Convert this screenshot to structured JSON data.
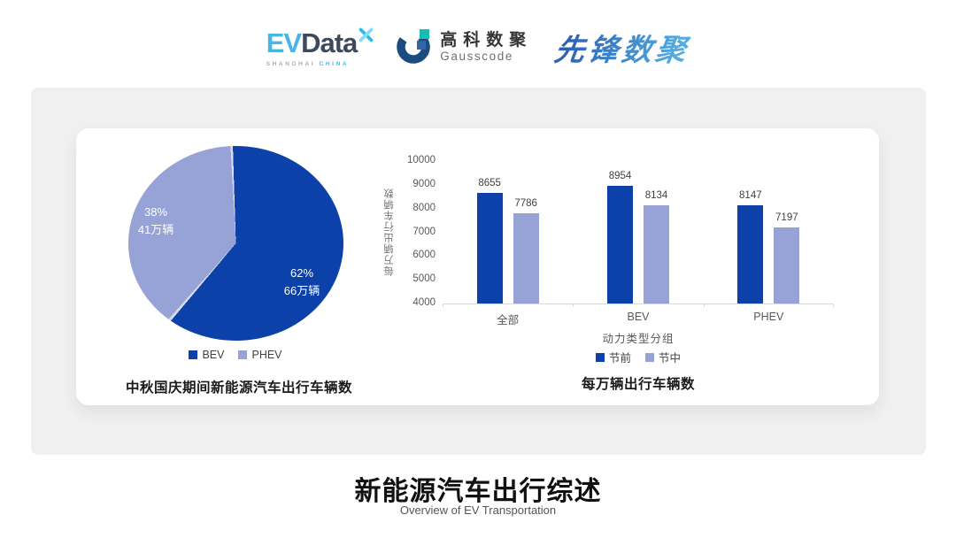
{
  "header": {
    "logos": {
      "evdata": {
        "ev": "EV",
        "data": "Data",
        "sub_left": "SHANGHAI",
        "sub_right": "CHINA"
      },
      "gausscode": {
        "cn": "高科数聚",
        "en": "Gausscode"
      },
      "xianfeng": {
        "text": "先锋数聚"
      }
    }
  },
  "chart_data": [
    {
      "type": "pie",
      "title": "中秋国庆期间新能源汽车出行车辆数",
      "labels": [
        "BEV",
        "PHEV"
      ],
      "values_pct": [
        62,
        38
      ],
      "values_count": [
        "66万辆",
        "41万辆"
      ],
      "slice_label_lines": [
        [
          "62%",
          "66万辆"
        ],
        [
          "38%",
          "41万辆"
        ]
      ],
      "colors": [
        "#0b41a8",
        "#97a2d6"
      ],
      "start_angle_deg": -2.5,
      "legend_position": "bottom"
    },
    {
      "type": "bar",
      "title": "每万辆出行车辆数",
      "categories": [
        "全部",
        "BEV",
        "PHEV"
      ],
      "series": [
        {
          "name": "节前",
          "values": [
            8655,
            8954,
            8147
          ],
          "color": "#0b41a8"
        },
        {
          "name": "节中",
          "values": [
            7786,
            8134,
            7197
          ],
          "color": "#97a2d6"
        }
      ],
      "xlabel": "动力类型分组",
      "ylabel": "每万辆出行车辆数",
      "ylim": [
        4000,
        10000
      ],
      "ytick_step": 1000,
      "grid": false,
      "legend_position": "bottom"
    }
  ],
  "footer": {
    "title": "新能源汽车出行综述",
    "subtitle": "Overview of EV Transportation"
  },
  "colors": {
    "series_pre": "#0b41a8",
    "series_mid": "#97a2d6",
    "panel_bg": "#f0f0f1",
    "axis_line": "#d9d9d9",
    "slice_divider": "#d5dcef"
  }
}
